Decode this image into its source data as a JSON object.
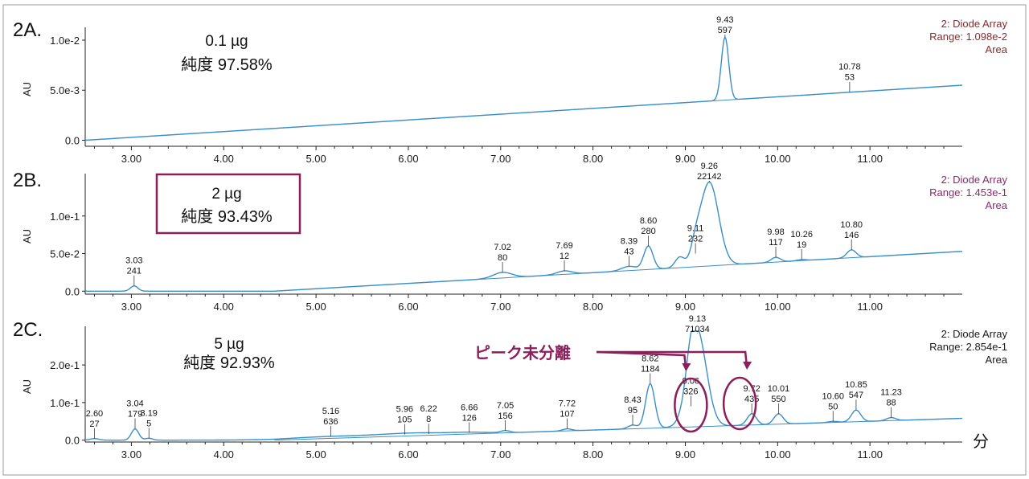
{
  "chart_data": {
    "type": "line",
    "x_unit": "分",
    "x_ticks": [
      "3.00",
      "4.00",
      "5.00",
      "6.00",
      "7.00",
      "8.00",
      "9.00",
      "10.00",
      "11.00"
    ],
    "xlim": [
      2.5,
      12.0
    ],
    "trace_color": "#3a8fc8",
    "panels": [
      {
        "id": "2A.",
        "sample": "0.1 µg",
        "purity": "純度 97.58%",
        "ylabel": "AU",
        "yticks": [
          {
            "v": 0.0,
            "label": "0.0"
          },
          {
            "v": 0.005,
            "label": "5.0e-3"
          },
          {
            "v": 0.01,
            "label": "1.0e-2"
          }
        ],
        "ylim": [
          -0.0006,
          0.0108
        ],
        "detector": "2: Diode Array",
        "range": "Range: 1.098e-2",
        "mode": "Area",
        "info_color": "#8b2a2a",
        "boxed": false,
        "baseline": [
          [
            2.5,
            0.0
          ],
          [
            12.0,
            0.0055
          ]
        ],
        "bumps": [
          [
            5.1,
            0.0013,
            0.3
          ],
          [
            5.8,
            0.0014,
            0.25
          ],
          [
            6.8,
            0.0019,
            0.4
          ],
          [
            7.6,
            0.0021,
            0.3
          ],
          [
            8.4,
            0.0025,
            0.35
          ],
          [
            9.43,
            0.0103,
            0.04
          ],
          [
            10.78,
            0.0048,
            0.3
          ],
          [
            11.5,
            0.0051,
            0.4
          ]
        ],
        "peaks": [
          {
            "rt": "9.43",
            "area": "597",
            "x": 9.43,
            "y": 0.0103
          },
          {
            "rt": "10.78",
            "area": "53",
            "x": 10.78,
            "y": 0.0048
          }
        ]
      },
      {
        "id": "2B.",
        "sample": "2 µg",
        "purity": "純度 93.43%",
        "ylabel": "AU",
        "yticks": [
          {
            "v": 0.0,
            "label": "0.0"
          },
          {
            "v": 0.05,
            "label": "5.0e-2"
          },
          {
            "v": 0.1,
            "label": "1.0e-1"
          }
        ],
        "ylim": [
          -0.004,
          0.15
        ],
        "detector": "2: Diode Array",
        "range": "Range: 1.453e-1",
        "mode": "Area",
        "info_color": "#8b2a6a",
        "boxed": true,
        "box_color": "#8b1f5c",
        "baseline": [
          [
            4.55,
            0.0
          ],
          [
            12.0,
            0.053
          ]
        ],
        "bumps": [
          [
            3.03,
            0.007,
            0.04
          ],
          [
            7.02,
            0.025,
            0.1
          ],
          [
            7.69,
            0.027,
            0.08
          ],
          [
            8.39,
            0.033,
            0.08
          ],
          [
            8.6,
            0.06,
            0.05
          ],
          [
            8.94,
            0.045,
            0.05
          ],
          [
            9.11,
            0.05,
            0.05
          ],
          [
            9.26,
            0.145,
            0.1
          ],
          [
            9.98,
            0.045,
            0.05
          ],
          [
            10.26,
            0.042,
            0.05
          ],
          [
            10.8,
            0.055,
            0.05
          ]
        ],
        "peaks": [
          {
            "rt": "3.03",
            "area": "241",
            "x": 3.03,
            "y": 0.007
          },
          {
            "rt": "7.02",
            "area": "80",
            "x": 7.02,
            "y": 0.025
          },
          {
            "rt": "7.69",
            "area": "12",
            "x": 7.69,
            "y": 0.027
          },
          {
            "rt": "8.39",
            "area": "43",
            "x": 8.39,
            "y": 0.033
          },
          {
            "rt": "8.60",
            "area": "280",
            "x": 8.6,
            "y": 0.06
          },
          {
            "rt": "9.11",
            "area": "232",
            "x": 9.11,
            "y": 0.05
          },
          {
            "rt": "9.26",
            "area": "22142",
            "x": 9.26,
            "y": 0.145
          },
          {
            "rt": "9.98",
            "area": "117",
            "x": 9.98,
            "y": 0.045
          },
          {
            "rt": "10.26",
            "area": "19",
            "x": 10.26,
            "y": 0.042
          },
          {
            "rt": "10.80",
            "area": "146",
            "x": 10.8,
            "y": 0.055
          }
        ]
      },
      {
        "id": "2C.",
        "sample": "5 µg",
        "purity": "純度 92.93%",
        "ylabel": "AU",
        "yticks": [
          {
            "v": 0.0,
            "label": "0.0"
          },
          {
            "v": 0.1,
            "label": "1.0e-1"
          },
          {
            "v": 0.2,
            "label": "2.0e-1"
          }
        ],
        "ylim": [
          -0.005,
          0.29
        ],
        "detector": "2: Diode Array",
        "range": "Range: 2.854e-1",
        "mode": "Area",
        "info_color": "#1a1a1a",
        "boxed": false,
        "baseline": [
          [
            4.55,
            0.0
          ],
          [
            12.0,
            0.058
          ]
        ],
        "bumps": [
          [
            2.6,
            0.004,
            0.05
          ],
          [
            3.04,
            0.03,
            0.04
          ],
          [
            3.19,
            0.005,
            0.04
          ],
          [
            5.16,
            0.01,
            0.5
          ],
          [
            5.96,
            0.015,
            0.3
          ],
          [
            6.22,
            0.016,
            0.3
          ],
          [
            6.66,
            0.02,
            0.2
          ],
          [
            7.05,
            0.025,
            0.05
          ],
          [
            7.72,
            0.03,
            0.05
          ],
          [
            8.43,
            0.04,
            0.05
          ],
          [
            8.62,
            0.15,
            0.05
          ],
          [
            9.06,
            0.09,
            0.05
          ],
          [
            9.13,
            0.285,
            0.1
          ],
          [
            9.72,
            0.07,
            0.05
          ],
          [
            10.01,
            0.07,
            0.05
          ],
          [
            10.6,
            0.05,
            0.05
          ],
          [
            10.85,
            0.08,
            0.05
          ],
          [
            11.23,
            0.06,
            0.05
          ]
        ],
        "peaks": [
          {
            "rt": "2.60",
            "area": "27",
            "x": 2.6,
            "y": 0.004
          },
          {
            "rt": "3.04",
            "area": "179",
            "x": 3.04,
            "y": 0.03
          },
          {
            "rt": "3.19",
            "area": "5",
            "x": 3.19,
            "y": 0.005
          },
          {
            "rt": "5.16",
            "area": "636",
            "x": 5.16,
            "y": 0.01
          },
          {
            "rt": "5.96",
            "area": "105",
            "x": 5.96,
            "y": 0.015
          },
          {
            "rt": "6.22",
            "area": "8",
            "x": 6.22,
            "y": 0.016
          },
          {
            "rt": "6.66",
            "area": "126",
            "x": 6.66,
            "y": 0.02
          },
          {
            "rt": "7.05",
            "area": "156",
            "x": 7.05,
            "y": 0.025
          },
          {
            "rt": "7.72",
            "area": "107",
            "x": 7.72,
            "y": 0.03
          },
          {
            "rt": "8.43",
            "area": "95",
            "x": 8.43,
            "y": 0.04
          },
          {
            "rt": "8.62",
            "area": "1184",
            "x": 8.62,
            "y": 0.15
          },
          {
            "rt": "9.06",
            "area": "326",
            "x": 9.06,
            "y": 0.09
          },
          {
            "rt": "9.13",
            "area": "71034",
            "x": 9.13,
            "y": 0.285
          },
          {
            "rt": "9.72",
            "area": "435",
            "x": 9.72,
            "y": 0.07
          },
          {
            "rt": "10.01",
            "area": "550",
            "x": 10.01,
            "y": 0.07
          },
          {
            "rt": "10.60",
            "area": "50",
            "x": 10.6,
            "y": 0.05
          },
          {
            "rt": "10.85",
            "area": "547",
            "x": 10.85,
            "y": 0.08
          },
          {
            "rt": "11.23",
            "area": "88",
            "x": 11.23,
            "y": 0.06
          }
        ],
        "annotation": {
          "text": "ピーク未分離",
          "color": "#8b1f5c",
          "circled_peaks": [
            9.06,
            9.72
          ]
        }
      }
    ]
  }
}
